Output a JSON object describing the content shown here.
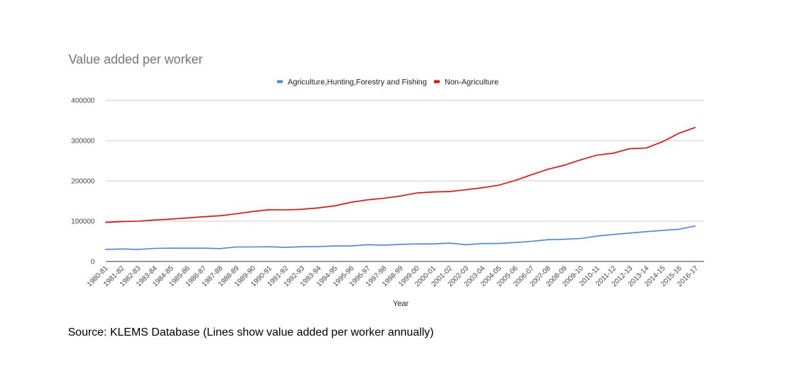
{
  "source_note": "Source: KLEMS Database (Lines show value added per worker annually)",
  "chart_data": {
    "type": "line",
    "title": "Value added per worker",
    "xlabel": "Year",
    "ylabel": "",
    "ylim": [
      0,
      400000
    ],
    "yticks": [
      0,
      100000,
      200000,
      300000,
      400000
    ],
    "grid": true,
    "legend_position": "top",
    "categories": [
      "1980-81",
      "1981-82",
      "1982-83",
      "1983-84",
      "1984-85",
      "1985-86",
      "1986-87",
      "1987-88",
      "1988-89",
      "1989-90",
      "1990-91",
      "1991-92",
      "1992-93",
      "1993-94",
      "1994-95",
      "1995-96",
      "1996-97",
      "1997-98",
      "1998-99",
      "1999-00",
      "2000-01",
      "2001-02",
      "2002-03",
      "2003-04",
      "2004-05",
      "2005-06",
      "2006-07",
      "2007-08",
      "2008-09",
      "2009-10",
      "2010-11",
      "2011-12",
      "2012-13",
      "2013-14",
      "2014-15",
      "2015-16",
      "2016-17"
    ],
    "series": [
      {
        "name": "Agriculture,Hunting,Forestry and Fishing",
        "color": "#4285f4",
        "values": [
          30000,
          31000,
          30000,
          32500,
          33000,
          33000,
          33000,
          32000,
          36000,
          36000,
          36500,
          35000,
          36500,
          37000,
          38500,
          38500,
          41500,
          40500,
          42500,
          43500,
          43500,
          45500,
          41500,
          44500,
          44500,
          47000,
          50000,
          54000,
          55000,
          57000,
          63000,
          67000,
          70500,
          74000,
          77000,
          80000,
          88000
        ]
      },
      {
        "name": "Non-Agriculture",
        "color": "#ff0000",
        "values": [
          97000,
          99000,
          100000,
          103000,
          105000,
          108000,
          111000,
          113500,
          118500,
          124000,
          128500,
          128000,
          129500,
          133000,
          138000,
          147000,
          153000,
          157000,
          162500,
          170000,
          172500,
          173500,
          178000,
          183000,
          189500,
          201000,
          215500,
          229000,
          239000,
          252500,
          264000,
          269000,
          280000,
          281500,
          297500,
          318500,
          333000
        ]
      }
    ]
  }
}
